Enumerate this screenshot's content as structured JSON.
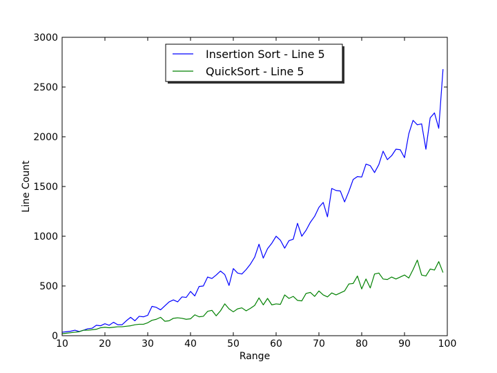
{
  "chart_data": {
    "type": "line",
    "title": "",
    "xlabel": "Range",
    "ylabel": "Line Count",
    "xlim": [
      10,
      100
    ],
    "ylim": [
      0,
      3000
    ],
    "xticks": [
      10,
      20,
      30,
      40,
      50,
      60,
      70,
      80,
      90,
      100
    ],
    "yticks": [
      0,
      500,
      1000,
      1500,
      2000,
      2500,
      3000
    ],
    "grid": false,
    "legend_position": "top-center",
    "x": [
      10,
      11,
      12,
      13,
      14,
      15,
      16,
      17,
      18,
      19,
      20,
      21,
      22,
      23,
      24,
      25,
      26,
      27,
      28,
      29,
      30,
      31,
      32,
      33,
      34,
      35,
      36,
      37,
      38,
      39,
      40,
      41,
      42,
      43,
      44,
      45,
      46,
      47,
      48,
      49,
      50,
      51,
      52,
      53,
      54,
      55,
      56,
      57,
      58,
      59,
      60,
      61,
      62,
      63,
      64,
      65,
      66,
      67,
      68,
      69,
      70,
      71,
      72,
      73,
      74,
      75,
      76,
      77,
      78,
      79,
      80,
      81,
      82,
      83,
      84,
      85,
      86,
      87,
      88,
      89,
      90,
      91,
      92,
      93,
      94,
      95,
      96,
      97,
      98,
      99
    ],
    "series": [
      {
        "name": "Insertion Sort - Line 5",
        "color": "#0000ff",
        "values": [
          35,
          40,
          45,
          55,
          42,
          55,
          70,
          75,
          105,
          100,
          120,
          105,
          135,
          110,
          110,
          150,
          185,
          150,
          195,
          190,
          205,
          295,
          285,
          260,
          300,
          340,
          360,
          340,
          390,
          385,
          445,
          400,
          495,
          500,
          590,
          575,
          610,
          650,
          615,
          505,
          675,
          630,
          620,
          665,
          720,
          790,
          920,
          780,
          875,
          930,
          1000,
          960,
          880,
          955,
          970,
          1130,
          1000,
          1060,
          1140,
          1200,
          1290,
          1340,
          1195,
          1480,
          1460,
          1455,
          1345,
          1450,
          1570,
          1600,
          1595,
          1725,
          1710,
          1640,
          1720,
          1855,
          1770,
          1810,
          1875,
          1870,
          1790,
          2030,
          2165,
          2120,
          2130,
          1875,
          2190,
          2240,
          2085,
          2680
        ]
      },
      {
        "name": "QuickSort - Line 5",
        "color": "#008000",
        "values": [
          20,
          25,
          30,
          35,
          40,
          55,
          55,
          60,
          65,
          80,
          85,
          80,
          85,
          90,
          90,
          95,
          100,
          110,
          115,
          115,
          130,
          155,
          165,
          185,
          145,
          150,
          175,
          180,
          175,
          165,
          170,
          210,
          190,
          195,
          245,
          255,
          200,
          250,
          320,
          270,
          240,
          270,
          280,
          250,
          275,
          305,
          380,
          310,
          375,
          310,
          320,
          315,
          410,
          375,
          395,
          355,
          350,
          425,
          435,
          395,
          450,
          410,
          390,
          430,
          410,
          430,
          450,
          520,
          525,
          600,
          470,
          570,
          480,
          620,
          630,
          570,
          565,
          590,
          570,
          590,
          610,
          580,
          665,
          760,
          610,
          600,
          670,
          660,
          745,
          635
        ]
      }
    ]
  }
}
